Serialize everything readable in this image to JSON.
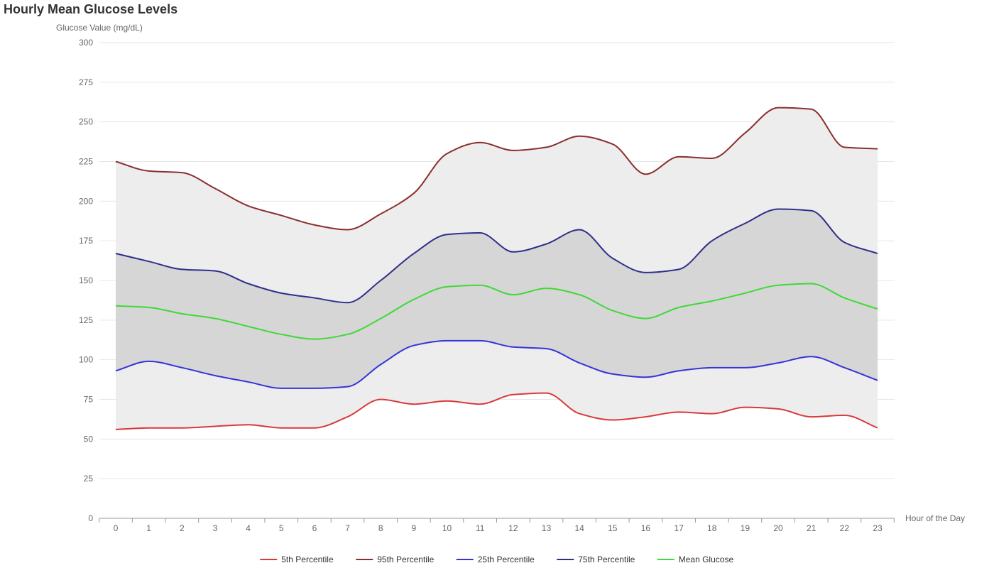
{
  "chart_data": {
    "type": "line",
    "title": "Hourly Mean Glucose Levels",
    "ylabel": "Glucose Value (mg/dL)",
    "xlabel": "Hour of the Day",
    "ylim": [
      0,
      300
    ],
    "yticks": [
      0,
      25,
      50,
      75,
      100,
      125,
      150,
      175,
      200,
      225,
      250,
      275,
      300
    ],
    "categories": [
      "0",
      "1",
      "2",
      "3",
      "4",
      "5",
      "6",
      "7",
      "8",
      "9",
      "10",
      "11",
      "12",
      "13",
      "14",
      "15",
      "16",
      "17",
      "18",
      "19",
      "20",
      "21",
      "22",
      "23"
    ],
    "grid": true,
    "legend_position": "bottom",
    "bands": [
      {
        "lower": "5th Percentile",
        "upper": "95th Percentile",
        "color": "#ededed"
      },
      {
        "lower": "25th Percentile",
        "upper": "75th Percentile",
        "color": "#d6d6d6"
      }
    ],
    "series": [
      {
        "name": "5th Percentile",
        "color": "#d9393b",
        "values": [
          56,
          57,
          57,
          58,
          59,
          57,
          57,
          64,
          75,
          72,
          74,
          72,
          78,
          79,
          66,
          62,
          64,
          67,
          66,
          70,
          69,
          64,
          65,
          57
        ]
      },
      {
        "name": "95th Percentile",
        "color": "#8b2e2e",
        "values": [
          225,
          219,
          218,
          208,
          197,
          191,
          185,
          182,
          192,
          205,
          230,
          237,
          232,
          234,
          241,
          236,
          217,
          228,
          227,
          243,
          259,
          258,
          234,
          233
        ]
      },
      {
        "name": "25th Percentile",
        "color": "#3434d9",
        "values": [
          93,
          99,
          95,
          90,
          86,
          82,
          82,
          83,
          97,
          109,
          112,
          112,
          108,
          107,
          98,
          91,
          89,
          93,
          95,
          95,
          98,
          102,
          95,
          87
        ]
      },
      {
        "name": "75th Percentile",
        "color": "#2e2e8b",
        "values": [
          167,
          162,
          157,
          156,
          148,
          142,
          139,
          136,
          150,
          167,
          179,
          180,
          168,
          173,
          182,
          164,
          155,
          157,
          175,
          186,
          195,
          194,
          174,
          167
        ]
      },
      {
        "name": "Mean Glucose",
        "color": "#3fd936",
        "values": [
          134,
          133,
          129,
          126,
          121,
          116,
          113,
          116,
          126,
          138,
          146,
          147,
          141,
          145,
          141,
          131,
          126,
          133,
          137,
          142,
          147,
          148,
          139,
          132
        ]
      }
    ]
  }
}
